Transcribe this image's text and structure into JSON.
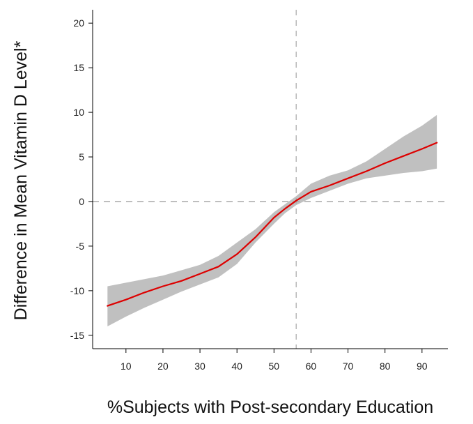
{
  "chart_data": {
    "type": "line",
    "title": "",
    "xlabel": "%Subjects with Post-secondary Education",
    "ylabel": "Difference in Mean Vitamin D Level*",
    "xlim": [
      1,
      97
    ],
    "ylim": [
      -16.5,
      21.5
    ],
    "x_ticks": [
      10,
      20,
      30,
      40,
      50,
      60,
      70,
      80,
      90
    ],
    "y_ticks": [
      -15,
      -10,
      -5,
      0,
      5,
      10,
      15,
      20
    ],
    "grid": false,
    "legend": "none",
    "reference_lines": {
      "x": 56,
      "y": 0
    },
    "series": [
      {
        "color": "#dd0000",
        "x": [
          5,
          10,
          15,
          20,
          25,
          30,
          35,
          40,
          45,
          50,
          53,
          56,
          60,
          65,
          70,
          75,
          80,
          85,
          90,
          94
        ],
        "y": [
          -11.7,
          -11.0,
          -10.2,
          -9.5,
          -8.9,
          -8.1,
          -7.3,
          -5.9,
          -4.0,
          -1.8,
          -0.8,
          0.1,
          1.1,
          1.8,
          2.6,
          3.4,
          4.3,
          5.1,
          5.9,
          6.6
        ]
      }
    ],
    "confidence_band": {
      "color": "#c0c0c0",
      "x": [
        5,
        10,
        15,
        20,
        25,
        30,
        35,
        40,
        45,
        50,
        53,
        56,
        60,
        65,
        70,
        75,
        80,
        85,
        90,
        94
      ],
      "lower": [
        -14.0,
        -12.9,
        -11.9,
        -11.0,
        -10.1,
        -9.3,
        -8.5,
        -7.0,
        -4.6,
        -2.5,
        -1.3,
        -0.4,
        0.4,
        1.2,
        2.0,
        2.6,
        2.9,
        3.2,
        3.4,
        3.7
      ],
      "upper": [
        -9.5,
        -9.1,
        -8.7,
        -8.3,
        -7.7,
        -7.1,
        -6.1,
        -4.6,
        -3.1,
        -1.2,
        -0.3,
        0.6,
        2.0,
        2.9,
        3.5,
        4.5,
        5.9,
        7.3,
        8.5,
        9.7
      ]
    }
  }
}
